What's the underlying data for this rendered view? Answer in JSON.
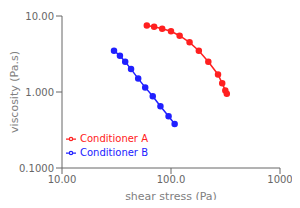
{
  "chart_data": {
    "type": "line",
    "xlabel": "shear stress (Pa)",
    "ylabel": "viscosity (Pa.s)",
    "log": true,
    "xlim": [
      10.0,
      1000.0
    ],
    "ylim": [
      0.1,
      10.0
    ],
    "xticks": [
      {
        "value": 10,
        "label": "10.00"
      },
      {
        "value": 100,
        "label": "100.0"
      },
      1000
    ],
    "yticks": [
      {
        "value": 0.1,
        "label": "0.1000"
      },
      {
        "value": 1,
        "label": "1.000"
      },
      {
        "value": 10,
        "label": "10.00"
      }
    ],
    "grid": false,
    "legend": "lower left",
    "series": [
      {
        "name": "Conditioner A",
        "color": "#ff2020",
        "marker": "circle",
        "x": [
          60,
          70,
          83,
          100,
          120,
          148,
          180,
          220,
          270,
          295,
          315,
          325
        ],
        "values": [
          7.5,
          7.2,
          6.8,
          6.3,
          5.5,
          4.5,
          3.5,
          2.5,
          1.7,
          1.3,
          1.05,
          0.95
        ]
      },
      {
        "name": "Conditioner B",
        "color": "#2020ff",
        "marker": "circle",
        "x": [
          30,
          34,
          38,
          43,
          50,
          58,
          68,
          80,
          95,
          108
        ],
        "values": [
          3.5,
          3.0,
          2.5,
          2.0,
          1.5,
          1.15,
          0.88,
          0.65,
          0.48,
          0.38
        ]
      }
    ]
  }
}
